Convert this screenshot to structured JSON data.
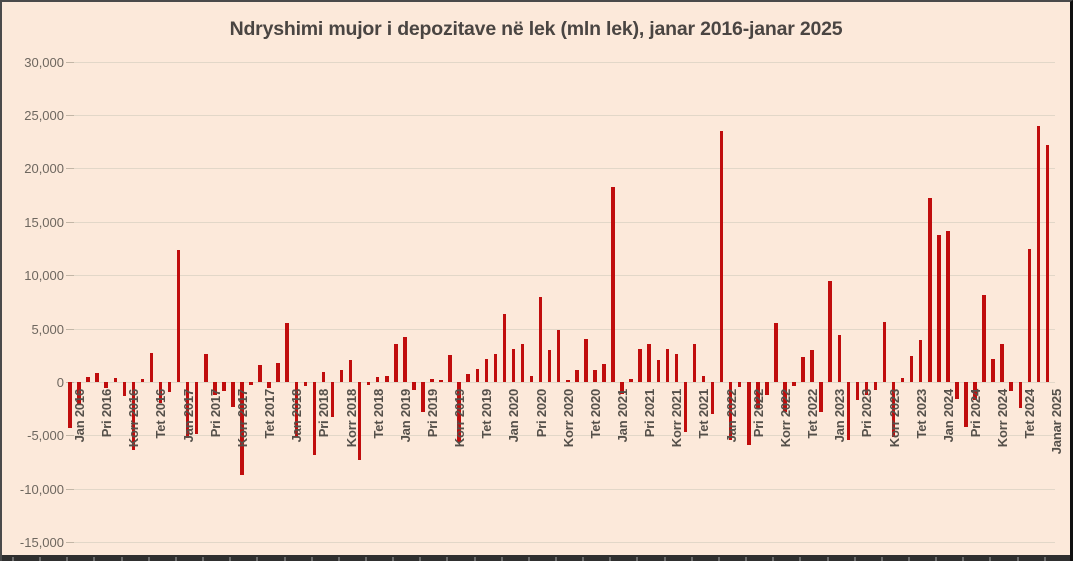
{
  "chart_data": {
    "type": "bar",
    "title": "Ndryshimi mujor i depozitave në lek (mln lek), janar 2016-janar 2025",
    "xlabel": "",
    "ylabel": "",
    "x_range": {
      "start": "2016-01",
      "end": "2025-01",
      "interval": "month",
      "count": 109
    },
    "values": [
      -4300,
      -2200,
      500,
      800,
      -600,
      400,
      -1300,
      -6400,
      300,
      2700,
      -2000,
      -900,
      12400,
      -5200,
      -4900,
      2650,
      -1250,
      -800,
      -2350,
      -8700,
      -250,
      1600,
      -600,
      1750,
      5550,
      -5100,
      -400,
      -6800,
      950,
      -3300,
      1150,
      2050,
      -7300,
      -300,
      500,
      600,
      3550,
      4200,
      -750,
      -2800,
      250,
      200,
      2500,
      -5600,
      750,
      1250,
      2200,
      2650,
      6400,
      3100,
      3550,
      600,
      8000,
      3000,
      4900,
      150,
      1100,
      4050,
      1100,
      1700,
      18250,
      -1100,
      250,
      3100,
      3550,
      2050,
      3100,
      2650,
      -4650,
      3550,
      550,
      -3000,
      23500,
      -5450,
      -500,
      -5900,
      -2500,
      -1250,
      5500,
      -2800,
      -400,
      2350,
      3000,
      -2800,
      9500,
      4400,
      -5450,
      -1700,
      -1250,
      -750,
      5600,
      -5150,
      400,
      2450,
      3950,
      17200,
      13800,
      14100,
      -1600,
      -4200,
      -1700,
      8100,
      2150,
      3550,
      -800,
      -2400,
      12500,
      24000,
      22200
    ],
    "x_tick_every_months": 3,
    "x_tick_labels": [
      "Jan 2016",
      "Pri 2016",
      "Korr 2016",
      "Tet 2016",
      "Jan 2017",
      "Pri 2017",
      "Korr 2017",
      "Tet 2017",
      "Jan 2018",
      "Pri 2018",
      "Korr 2018",
      "Tet 2018",
      "Jan 2019",
      "Pri 2019",
      "Korr 2019",
      "Tet 2019",
      "Jan 2020",
      "Pri 2020",
      "Korr 2020",
      "Tet 2020",
      "Jan 2021",
      "Pri 2021",
      "Korr 2021",
      "Tet 2021",
      "Jan 2022",
      "Pri 2022",
      "Korr 2022",
      "Tet 2022",
      "Jan 2023",
      "Pri 2023",
      "Korr 2023",
      "Tet 2023",
      "Jan 2024",
      "Pri 2024",
      "Korr 2024",
      "Tet 2024",
      "Janar 2025"
    ],
    "ylim": [
      -15000,
      30000
    ],
    "y_ticks": [
      30000,
      25000,
      20000,
      15000,
      10000,
      5000,
      0,
      -5000,
      -10000,
      -15000
    ],
    "y_tick_labels": [
      "30,000",
      "25,000",
      "20,000",
      "15,000",
      "10,000",
      "5,000",
      "0",
      "-5,000",
      "-10,000",
      "-15,000"
    ],
    "grid": "horizontal",
    "legend": "none",
    "colors": {
      "bar": "#c00d0d",
      "background": "#fce9da",
      "gridline": "#e2d7c8",
      "title_text": "#4a4542",
      "y_axis_text": "#6e675f",
      "x_axis_text": "#55504a"
    }
  }
}
